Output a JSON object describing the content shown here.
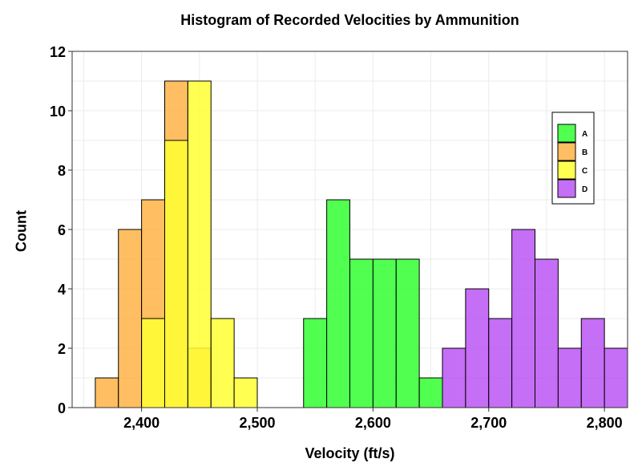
{
  "chart_data": {
    "type": "bar",
    "title": "Histogram of Recorded Velocities by Ammunition",
    "xlabel": "Velocity (ft/s)",
    "ylabel": "Count",
    "xlim": [
      2340,
      2820
    ],
    "ylim": [
      0,
      12
    ],
    "xticks": [
      2400,
      2500,
      2600,
      2700,
      2800
    ],
    "xtick_labels": [
      "2,400",
      "2,500",
      "2,600",
      "2,700",
      "2,800"
    ],
    "yticks": [
      0,
      2,
      4,
      6,
      8,
      10,
      12
    ],
    "ytick_labels": [
      "0",
      "2",
      "4",
      "6",
      "8",
      "10",
      "12"
    ],
    "bin_width": 20,
    "grid": true,
    "legend_position": "top-right",
    "stacked": false,
    "series": [
      {
        "name": "A",
        "color": "#33ff33",
        "bins": [
          [
            2540,
            3
          ],
          [
            2560,
            7
          ],
          [
            2580,
            5
          ],
          [
            2600,
            5
          ],
          [
            2620,
            5
          ],
          [
            2640,
            1
          ]
        ]
      },
      {
        "name": "B",
        "color": "#ffb347",
        "bins": [
          [
            2360,
            1
          ],
          [
            2380,
            6
          ],
          [
            2400,
            7
          ],
          [
            2420,
            11
          ],
          [
            2440,
            2
          ]
        ]
      },
      {
        "name": "C",
        "color": "#ffff33",
        "bins": [
          [
            2400,
            3
          ],
          [
            2420,
            9
          ],
          [
            2440,
            11
          ],
          [
            2460,
            3
          ],
          [
            2480,
            1
          ]
        ]
      },
      {
        "name": "D",
        "color": "#bb55f5",
        "bins": [
          [
            2660,
            2
          ],
          [
            2680,
            4
          ],
          [
            2700,
            3
          ],
          [
            2720,
            6
          ],
          [
            2740,
            5
          ],
          [
            2760,
            2
          ],
          [
            2780,
            3
          ],
          [
            2800,
            2
          ]
        ]
      }
    ]
  }
}
